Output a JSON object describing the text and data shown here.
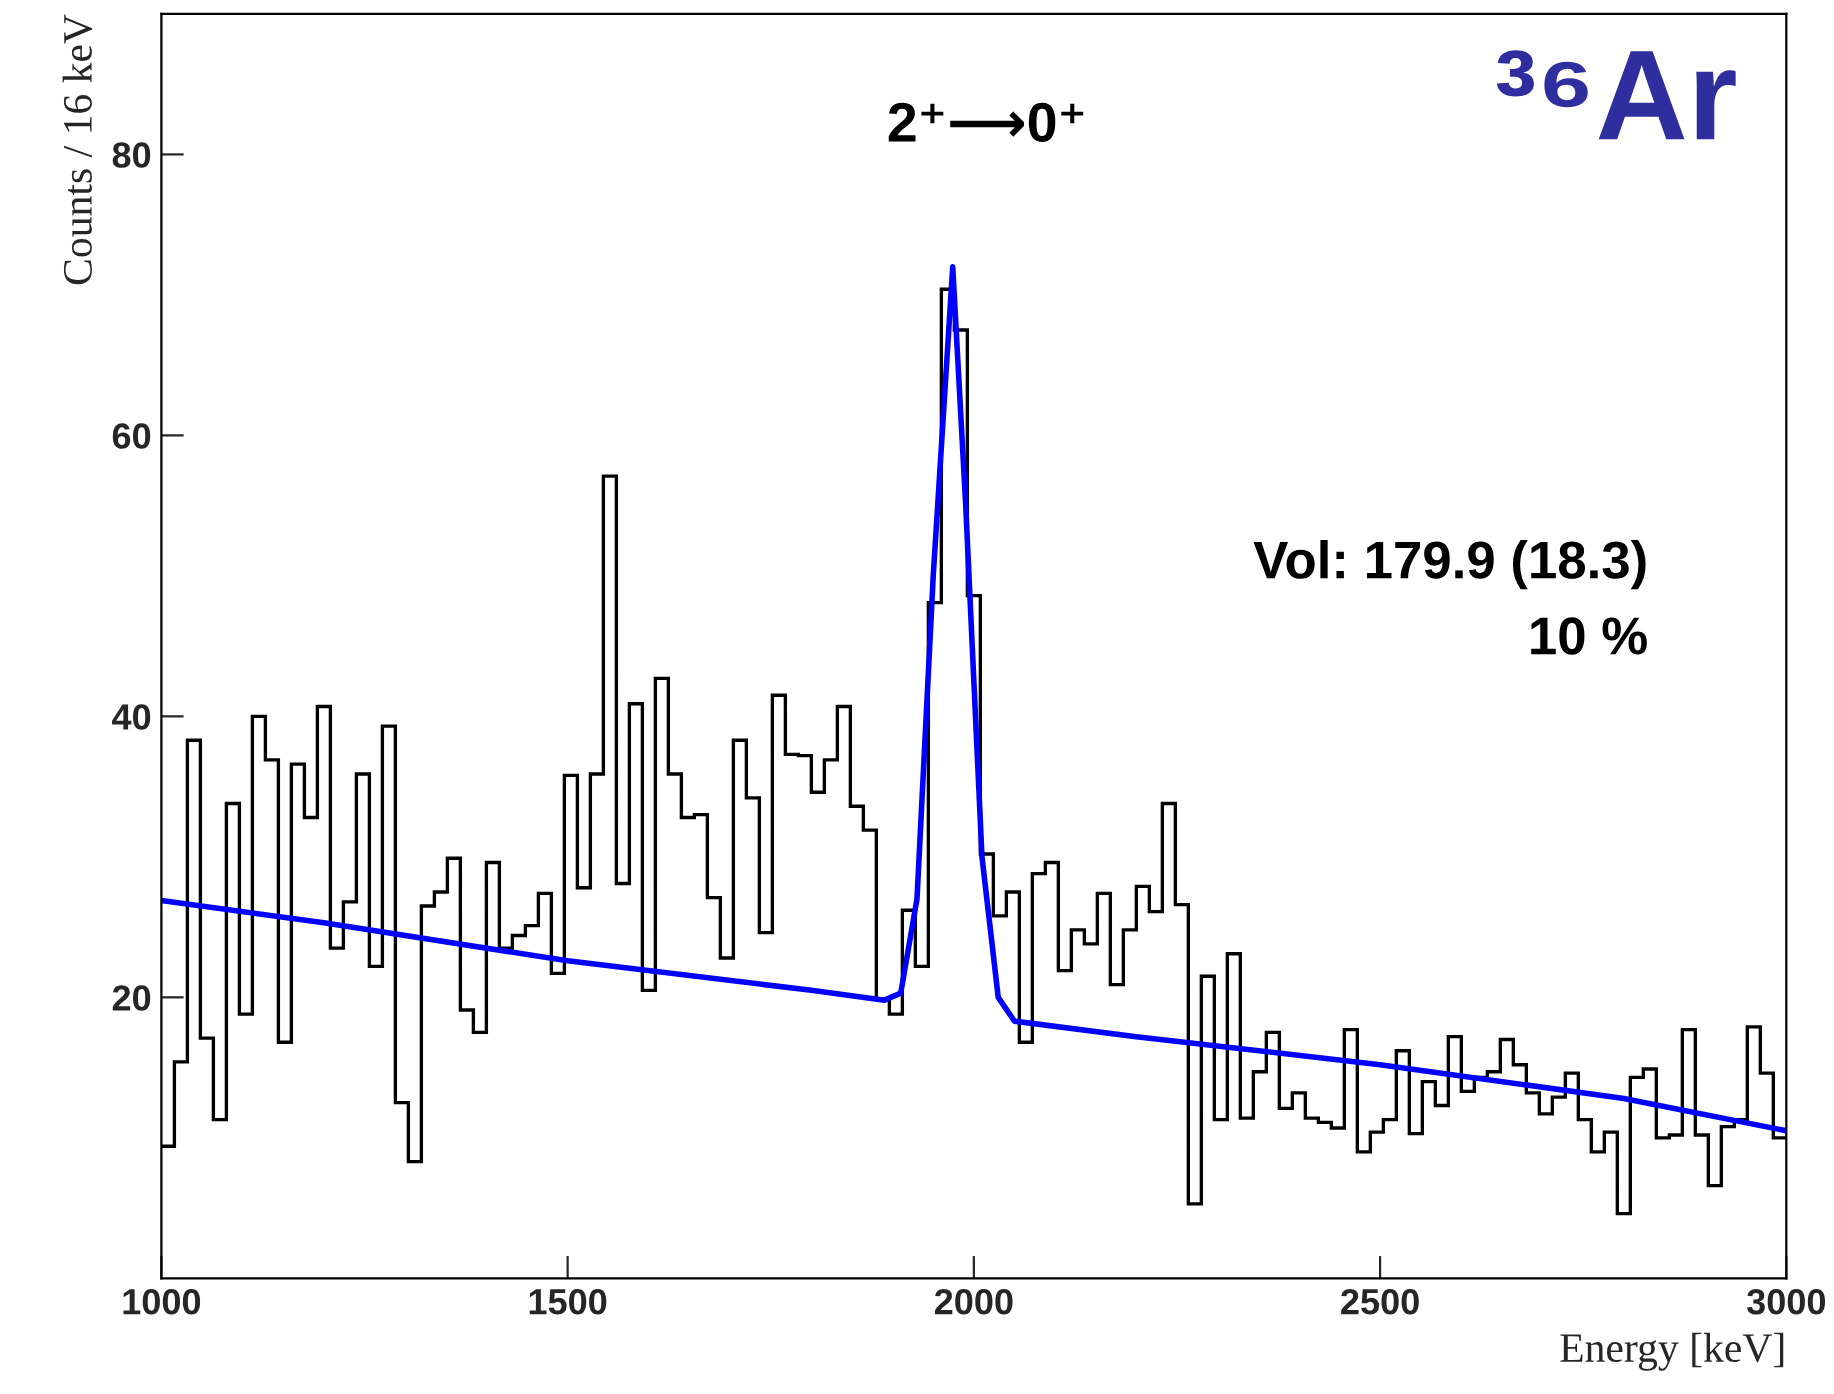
{
  "chart_data": {
    "type": "histogram",
    "xlabel": "Energy [keV]",
    "ylabel": "Counts / 16 keV",
    "bins": [
      1000,
      1016,
      1032,
      1048,
      1064,
      1080,
      1096,
      1112,
      1128,
      1144,
      1160,
      1176,
      1192,
      1208,
      1224,
      1240,
      1256,
      1272,
      1288,
      1304,
      1320,
      1336,
      1352,
      1368,
      1384,
      1400,
      1416,
      1432,
      1448,
      1464,
      1480,
      1496,
      1512,
      1528,
      1544,
      1560,
      1576,
      1592,
      1608,
      1624,
      1640,
      1656,
      1672,
      1688,
      1704,
      1720,
      1736,
      1752,
      1768,
      1784,
      1800,
      1816,
      1832,
      1848,
      1864,
      1880,
      1896,
      1912,
      1928,
      1944,
      1960,
      1976,
      1992,
      2008,
      2024,
      2040,
      2056,
      2072,
      2088,
      2104,
      2120,
      2136,
      2152,
      2168,
      2184,
      2200,
      2216,
      2232,
      2248,
      2264,
      2280,
      2296,
      2312,
      2328,
      2344,
      2360,
      2376,
      2392,
      2408,
      2424,
      2440,
      2456,
      2472,
      2488,
      2504,
      2520,
      2536,
      2552,
      2568,
      2584,
      2600,
      2616,
      2632,
      2648,
      2664,
      2680,
      2696,
      2712,
      2728,
      2744,
      2760,
      2776,
      2792,
      2808,
      2824,
      2840,
      2856,
      2872,
      2888,
      2904,
      2920,
      2936,
      2952,
      2968,
      2984,
      3000
    ],
    "values": [
      9.4,
      15.4,
      38.3,
      17.1,
      11.3,
      33.8,
      18.8,
      40.0,
      36.9,
      16.8,
      36.6,
      32.8,
      40.7,
      23.5,
      26.8,
      35.9,
      22.2,
      39.3,
      12.5,
      8.3,
      26.5,
      27.5,
      29.9,
      19.1,
      17.5,
      29.6,
      23.5,
      24.4,
      25.1,
      27.4,
      21.7,
      35.8,
      27.8,
      35.9,
      57.1,
      28.1,
      40.9,
      20.5,
      42.7,
      35.9,
      32.8,
      33.0,
      27.1,
      22.8,
      38.3,
      34.2,
      24.6,
      41.5,
      37.3,
      37.2,
      34.6,
      36.9,
      40.7,
      33.6,
      31.9,
      19.9,
      18.8,
      26.2,
      22.2,
      48.1,
      70.4,
      67.5,
      48.6,
      30.2,
      25.8,
      27.5,
      16.8,
      28.8,
      29.6,
      21.9,
      24.8,
      23.8,
      27.4,
      20.9,
      24.8,
      27.9,
      26.1,
      33.8,
      26.6,
      5.3,
      21.5,
      11.3,
      23.1,
      11.4,
      14.7,
      17.5,
      12.1,
      13.2,
      11.4,
      11.1,
      10.7,
      17.7,
      9.0,
      10.4,
      11.3,
      16.2,
      10.3,
      14.0,
      12.3,
      17.2,
      13.3,
      14.3,
      14.7,
      17.0,
      15.2,
      13.2,
      11.7,
      12.9,
      14.6,
      11.3,
      9.0,
      10.4,
      4.6,
      14.3,
      14.9,
      10.0,
      10.2,
      17.7,
      10.2,
      6.6,
      10.8,
      11.3,
      17.9,
      14.6,
      10.0
    ],
    "color": "#000000",
    "series": [
      {
        "type": "line",
        "color": "#0000ff",
        "x": [
          1000,
          1200,
          1500,
          1800,
          1890,
          1910,
          1930,
          1950,
          1974,
          1990,
          2010,
          2030,
          2050,
          2200,
          2500,
          2800,
          3000
        ],
        "values": [
          26.9,
          25.3,
          22.6,
          20.5,
          19.8,
          20.3,
          27,
          50,
          72,
          55,
          30,
          20,
          18.3,
          17.2,
          15.2,
          12.8,
          10.5
        ]
      }
    ],
    "xlim": [
      1000,
      3000
    ],
    "ylim": [
      0,
      90
    ],
    "xticks": [
      1000,
      1500,
      2000,
      2500,
      3000
    ],
    "yticks": [
      20,
      40,
      60,
      80
    ],
    "annotations": [
      "2⁺⟶0⁺",
      "³⁶Ar",
      "Vol: 179.9 (18.3)",
      "10 %"
    ],
    "grid": false,
    "legend": false
  }
}
